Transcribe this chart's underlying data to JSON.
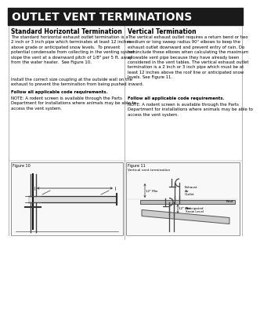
{
  "title": "OUTLET VENT TERMINATIONS",
  "title_bg": "#1a1a1a",
  "title_color": "#ffffff",
  "left_heading": "Standard Horizontal Termination",
  "right_heading": "Vertical Termination",
  "left_body1": "The standard horizontal exhaust outlet termination is a\n2 inch or 3 inch pipe which terminates at least 12 inches\nabove grade or anticipated snow levels.  To prevent\npotential condensate from collecting in the venting system,\nslope the vent at a downward pitch of 1/8\" per 5 ft. away\nfrom the water heater.  See Figure 10.",
  "left_body2": "Install the correct size coupling at the outside wall on the\nexhaust to prevent the termination from being pushed inward.",
  "left_bold": "Follow all applicable code requirements.",
  "left_note": "NOTE: A rodent screen is available through the Parts\nDepartment for installations where animals may be able to\naccess the vent system.",
  "right_body1": "The vertical exhaust outlet requires a return bend or two\nmedium or long sweep radius 90° elbows to keep the\nexhaust outlet downward and prevent entry of rain. Do\nnot include these elbows when calculating the maximum\nallowable vent pipe because they have already been\nconsidered in the vent tables. The vertical exhaust outlet\ntermination is a 2 inch or 3 inch pipe which must be at\nleast 12 inches above the roof line or anticipated snow\nlevels. See Figure 11.",
  "right_bold": "Follow all applicable code requirements.",
  "right_note": "NOTE: A rodent screen is available through the Parts\nDepartment for installations where animals may be able to\naccess the vent system.",
  "fig10_label": "Figure 10",
  "fig11_label": "Figure 11",
  "fig11_sublabel": "Vertical vent termination",
  "bg_color": "#ffffff",
  "text_color": "#000000",
  "gray_color": "#888888",
  "dark_color": "#333333"
}
